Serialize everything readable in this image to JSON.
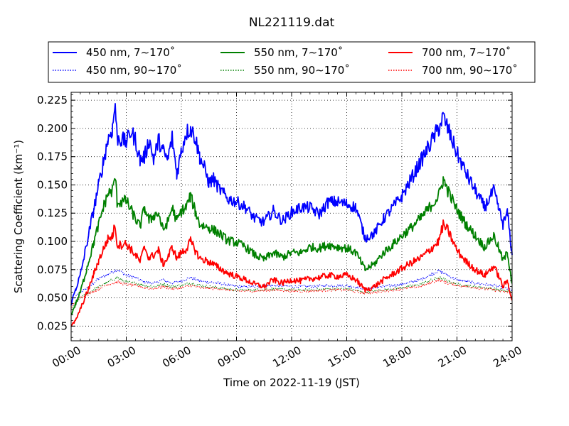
{
  "chart_data": {
    "type": "line",
    "title": "NL221119.dat",
    "xlabel": "Time on 2022-11-19 (JST)",
    "ylabel": "Scattering Coefficient (km⁻¹)",
    "xlim": [
      0,
      24
    ],
    "ylim": [
      0.012,
      0.232
    ],
    "xticks": [
      0,
      3,
      6,
      9,
      12,
      15,
      18,
      21,
      24
    ],
    "xtick_labels": [
      "00:00",
      "03:00",
      "06:00",
      "09:00",
      "12:00",
      "15:00",
      "18:00",
      "21:00",
      "24:00"
    ],
    "yticks": [
      0.025,
      0.05,
      0.075,
      0.1,
      0.125,
      0.15,
      0.175,
      0.2,
      0.225
    ],
    "ytick_labels": [
      "0.025",
      "0.050",
      "0.075",
      "0.100",
      "0.125",
      "0.150",
      "0.175",
      "0.200",
      "0.225"
    ],
    "grid": true,
    "legend_position": "top",
    "x_unit": "hours",
    "series": [
      {
        "name": "450 nm, 7∼170˚",
        "color": "#0000ff",
        "style": "solid",
        "x": [
          0,
          0.25,
          0.5,
          0.75,
          1,
          1.25,
          1.5,
          1.75,
          2,
          2.25,
          2.4,
          2.5,
          2.75,
          3,
          3.25,
          3.5,
          3.75,
          4,
          4.25,
          4.5,
          4.75,
          5,
          5.25,
          5.5,
          5.75,
          6,
          6.25,
          6.5,
          6.75,
          7,
          7.25,
          7.5,
          7.75,
          8,
          8.5,
          9,
          9.5,
          10,
          10.5,
          11,
          11.5,
          12,
          12.5,
          13,
          13.5,
          14,
          14.5,
          15,
          15.5,
          16,
          16.5,
          17,
          17.5,
          18,
          18.5,
          19,
          19.5,
          20,
          20.25,
          20.5,
          21,
          21.5,
          22,
          22.5,
          23,
          23.25,
          23.5,
          23.75,
          24
        ],
        "y": [
          0.045,
          0.058,
          0.07,
          0.09,
          0.11,
          0.13,
          0.15,
          0.17,
          0.19,
          0.2,
          0.222,
          0.192,
          0.19,
          0.188,
          0.197,
          0.19,
          0.172,
          0.175,
          0.19,
          0.172,
          0.19,
          0.18,
          0.172,
          0.192,
          0.16,
          0.18,
          0.196,
          0.2,
          0.192,
          0.175,
          0.165,
          0.152,
          0.155,
          0.148,
          0.138,
          0.135,
          0.13,
          0.12,
          0.117,
          0.127,
          0.118,
          0.126,
          0.13,
          0.13,
          0.124,
          0.135,
          0.135,
          0.133,
          0.13,
          0.103,
          0.107,
          0.12,
          0.13,
          0.14,
          0.155,
          0.17,
          0.185,
          0.2,
          0.21,
          0.2,
          0.178,
          0.16,
          0.145,
          0.13,
          0.145,
          0.13,
          0.115,
          0.125,
          0.088
        ]
      },
      {
        "name": "450 nm, 90∼170˚",
        "color": "#0000ff",
        "style": "dotted",
        "x": [
          0,
          0.5,
          1,
          1.5,
          2,
          2.5,
          3,
          3.5,
          4,
          4.5,
          5,
          5.5,
          6,
          6.5,
          7,
          8,
          9,
          10,
          11,
          12,
          13,
          14,
          15,
          16,
          17,
          18,
          19,
          19.5,
          20,
          20.5,
          21,
          22,
          23,
          24
        ],
        "y": [
          0.047,
          0.055,
          0.06,
          0.067,
          0.071,
          0.075,
          0.07,
          0.068,
          0.064,
          0.063,
          0.066,
          0.063,
          0.065,
          0.068,
          0.065,
          0.063,
          0.06,
          0.06,
          0.061,
          0.06,
          0.06,
          0.061,
          0.061,
          0.058,
          0.06,
          0.062,
          0.066,
          0.07,
          0.074,
          0.07,
          0.066,
          0.063,
          0.061,
          0.057
        ]
      },
      {
        "name": "550 nm, 7∼170˚",
        "color": "#008000",
        "style": "solid",
        "x": [
          0,
          0.25,
          0.5,
          0.75,
          1,
          1.25,
          1.5,
          1.75,
          2,
          2.25,
          2.4,
          2.5,
          2.75,
          3,
          3.25,
          3.5,
          3.75,
          4,
          4.25,
          4.5,
          4.75,
          5,
          5.25,
          5.5,
          5.75,
          6,
          6.25,
          6.5,
          6.75,
          7,
          7.5,
          8,
          8.5,
          9,
          9.5,
          10,
          10.5,
          11,
          11.5,
          12,
          12.5,
          13,
          13.5,
          14,
          14.5,
          15,
          15.5,
          16,
          16.5,
          17,
          17.5,
          18,
          18.5,
          19,
          19.5,
          20,
          20.25,
          20.5,
          21,
          21.5,
          22,
          22.5,
          23,
          23.25,
          23.5,
          23.75,
          24
        ],
        "y": [
          0.035,
          0.045,
          0.055,
          0.07,
          0.085,
          0.1,
          0.115,
          0.13,
          0.142,
          0.145,
          0.158,
          0.135,
          0.135,
          0.136,
          0.128,
          0.12,
          0.113,
          0.13,
          0.118,
          0.123,
          0.125,
          0.11,
          0.117,
          0.13,
          0.118,
          0.127,
          0.13,
          0.14,
          0.127,
          0.115,
          0.112,
          0.108,
          0.101,
          0.099,
          0.095,
          0.088,
          0.084,
          0.09,
          0.086,
          0.09,
          0.09,
          0.095,
          0.094,
          0.097,
          0.095,
          0.094,
          0.09,
          0.075,
          0.08,
          0.09,
          0.097,
          0.105,
          0.112,
          0.12,
          0.13,
          0.14,
          0.155,
          0.145,
          0.128,
          0.115,
          0.105,
          0.095,
          0.105,
          0.095,
          0.083,
          0.09,
          0.063
        ]
      },
      {
        "name": "550 nm, 90∼170˚",
        "color": "#008000",
        "style": "dotted",
        "x": [
          0,
          0.5,
          1,
          1.5,
          2,
          2.5,
          3,
          3.5,
          4,
          4.5,
          5,
          5.5,
          6,
          6.5,
          7,
          8,
          9,
          10,
          11,
          12,
          13,
          14,
          15,
          16,
          17,
          18,
          19,
          19.5,
          20,
          20.5,
          21,
          22,
          23,
          24
        ],
        "y": [
          0.04,
          0.05,
          0.055,
          0.06,
          0.064,
          0.068,
          0.064,
          0.063,
          0.061,
          0.06,
          0.062,
          0.06,
          0.061,
          0.063,
          0.061,
          0.059,
          0.057,
          0.057,
          0.058,
          0.057,
          0.057,
          0.058,
          0.058,
          0.055,
          0.057,
          0.059,
          0.062,
          0.065,
          0.068,
          0.065,
          0.062,
          0.06,
          0.058,
          0.055
        ]
      },
      {
        "name": "700 nm, 7∼170˚",
        "color": "#ff0000",
        "style": "solid",
        "x": [
          0,
          0.25,
          0.5,
          0.75,
          1,
          1.25,
          1.5,
          1.75,
          2,
          2.25,
          2.4,
          2.5,
          2.75,
          3,
          3.25,
          3.5,
          3.75,
          4,
          4.25,
          4.5,
          4.75,
          5,
          5.25,
          5.5,
          5.75,
          6,
          6.25,
          6.5,
          6.75,
          7,
          7.5,
          8,
          8.5,
          9,
          9.5,
          10,
          10.5,
          11,
          11.5,
          12,
          12.5,
          13,
          13.5,
          14,
          14.5,
          15,
          15.5,
          16,
          16.5,
          17,
          17.5,
          18,
          18.5,
          19,
          19.5,
          20,
          20.25,
          20.5,
          21,
          21.5,
          22,
          22.5,
          23,
          23.25,
          23.5,
          23.75,
          24
        ],
        "y": [
          0.025,
          0.03,
          0.04,
          0.05,
          0.06,
          0.072,
          0.083,
          0.093,
          0.102,
          0.105,
          0.115,
          0.097,
          0.097,
          0.098,
          0.093,
          0.088,
          0.082,
          0.095,
          0.085,
          0.088,
          0.092,
          0.08,
          0.085,
          0.095,
          0.085,
          0.09,
          0.093,
          0.1,
          0.092,
          0.085,
          0.082,
          0.077,
          0.072,
          0.069,
          0.066,
          0.062,
          0.06,
          0.066,
          0.063,
          0.066,
          0.065,
          0.067,
          0.068,
          0.07,
          0.069,
          0.07,
          0.066,
          0.057,
          0.06,
          0.066,
          0.071,
          0.076,
          0.081,
          0.085,
          0.092,
          0.1,
          0.115,
          0.11,
          0.092,
          0.082,
          0.075,
          0.07,
          0.078,
          0.07,
          0.06,
          0.065,
          0.048
        ]
      },
      {
        "name": "700 nm, 90∼170˚",
        "color": "#ff0000",
        "style": "dotted",
        "x": [
          0,
          0.5,
          1,
          1.5,
          2,
          2.5,
          3,
          3.5,
          4,
          4.5,
          5,
          5.5,
          6,
          6.5,
          7,
          8,
          9,
          10,
          11,
          12,
          13,
          14,
          15,
          16,
          17,
          18,
          19,
          19.5,
          20,
          20.5,
          21,
          22,
          23,
          24
        ],
        "y": [
          0.042,
          0.05,
          0.054,
          0.058,
          0.062,
          0.064,
          0.062,
          0.061,
          0.059,
          0.058,
          0.06,
          0.058,
          0.059,
          0.061,
          0.059,
          0.058,
          0.056,
          0.056,
          0.057,
          0.056,
          0.056,
          0.057,
          0.057,
          0.054,
          0.056,
          0.058,
          0.06,
          0.063,
          0.066,
          0.063,
          0.061,
          0.059,
          0.057,
          0.054
        ]
      }
    ]
  }
}
